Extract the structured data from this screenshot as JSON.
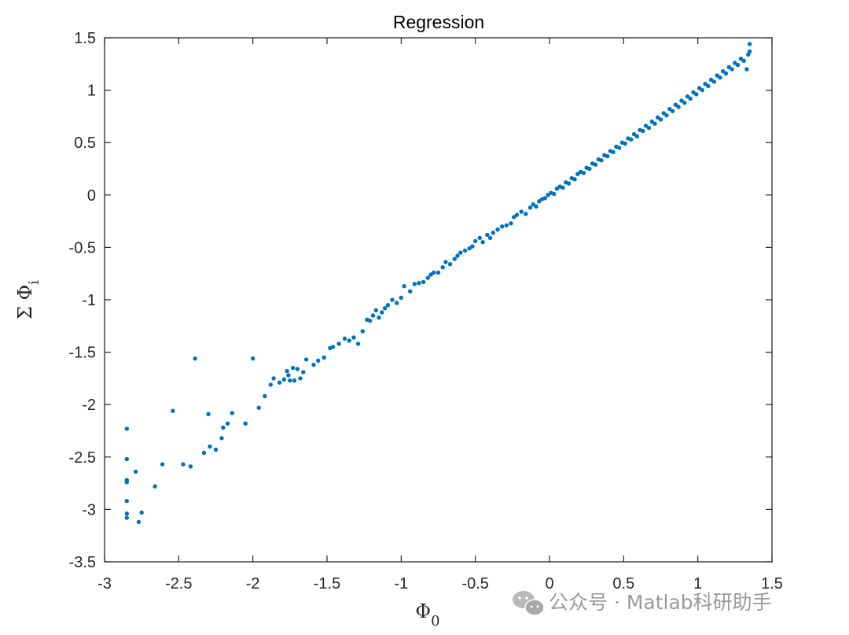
{
  "chart_data": {
    "type": "scatter",
    "title": "Regression",
    "xlabel": {
      "symbol": "Φ",
      "sub": "0"
    },
    "ylabel": {
      "symbol": "Σ Φ",
      "sub": "i"
    },
    "xlim": [
      -3,
      1.5
    ],
    "ylim": [
      -3.5,
      1.5
    ],
    "xticks": [
      "-3",
      "-2.5",
      "-2",
      "-1.5",
      "-1",
      "-0.5",
      "0",
      "0.5",
      "1",
      "1.5"
    ],
    "yticks": [
      "-3.5",
      "-3",
      "-2.5",
      "-2",
      "-1.5",
      "-1",
      "-0.5",
      "0",
      "0.5",
      "1",
      "1.5"
    ],
    "grid": false,
    "marker_color": "#0072BD",
    "series": [
      {
        "points": [
          [
            -2.85,
            -2.23
          ],
          [
            -2.85,
            -2.52
          ],
          [
            -2.85,
            -2.72
          ],
          [
            -2.85,
            -2.74
          ],
          [
            -2.85,
            -2.92
          ],
          [
            -2.85,
            -3.04
          ],
          [
            -2.85,
            -3.08
          ],
          [
            -2.79,
            -2.64
          ],
          [
            -2.77,
            -3.12
          ],
          [
            -2.75,
            -3.03
          ],
          [
            -2.66,
            -2.78
          ],
          [
            -2.61,
            -2.57
          ],
          [
            -2.54,
            -2.06
          ],
          [
            -2.47,
            -2.57
          ],
          [
            -2.42,
            -2.59
          ],
          [
            -2.39,
            -1.56
          ],
          [
            -2.33,
            -2.46
          ],
          [
            -2.3,
            -2.09
          ],
          [
            -2.29,
            -2.4
          ],
          [
            -2.25,
            -2.43
          ],
          [
            -2.21,
            -2.32
          ],
          [
            -2.2,
            -2.22
          ],
          [
            -2.17,
            -2.18
          ],
          [
            -2.14,
            -2.08
          ],
          [
            -2.05,
            -2.18
          ],
          [
            -2.0,
            -1.56
          ],
          [
            -1.96,
            -2.03
          ],
          [
            -1.92,
            -1.92
          ],
          [
            -1.88,
            -1.81
          ],
          [
            -1.86,
            -1.75
          ],
          [
            -1.82,
            -1.79
          ],
          [
            -1.79,
            -1.76
          ],
          [
            -1.77,
            -1.68
          ],
          [
            -1.76,
            -1.72
          ],
          [
            -1.75,
            -1.77
          ],
          [
            -1.73,
            -1.65
          ],
          [
            -1.72,
            -1.77
          ],
          [
            -1.7,
            -1.66
          ],
          [
            -1.68,
            -1.75
          ],
          [
            -1.66,
            -1.69
          ],
          [
            -1.64,
            -1.57
          ],
          [
            -1.59,
            -1.62
          ],
          [
            -1.56,
            -1.58
          ],
          [
            -1.52,
            -1.55
          ],
          [
            -1.48,
            -1.46
          ],
          [
            -1.46,
            -1.45
          ],
          [
            -1.42,
            -1.42
          ],
          [
            -1.38,
            -1.37
          ],
          [
            -1.35,
            -1.39
          ],
          [
            -1.32,
            -1.36
          ],
          [
            -1.29,
            -1.42
          ],
          [
            -1.26,
            -1.3
          ],
          [
            -1.23,
            -1.19
          ],
          [
            -1.21,
            -1.2
          ],
          [
            -1.19,
            -1.15
          ],
          [
            -1.17,
            -1.1
          ],
          [
            -1.15,
            -1.17
          ],
          [
            -1.13,
            -1.12
          ],
          [
            -1.11,
            -1.08
          ],
          [
            -1.09,
            -1.05
          ],
          [
            -1.06,
            -1.0
          ],
          [
            -1.03,
            -1.03
          ],
          [
            -1.0,
            -0.98
          ],
          [
            -0.98,
            -0.87
          ],
          [
            -0.94,
            -0.92
          ],
          [
            -0.91,
            -0.85
          ],
          [
            -0.88,
            -0.84
          ],
          [
            -0.85,
            -0.83
          ],
          [
            -0.82,
            -0.79
          ],
          [
            -0.8,
            -0.76
          ],
          [
            -0.78,
            -0.74
          ],
          [
            -0.75,
            -0.74
          ],
          [
            -0.72,
            -0.69
          ],
          [
            -0.7,
            -0.64
          ],
          [
            -0.67,
            -0.66
          ],
          [
            -0.64,
            -0.61
          ],
          [
            -0.62,
            -0.58
          ],
          [
            -0.6,
            -0.55
          ],
          [
            -0.57,
            -0.53
          ],
          [
            -0.54,
            -0.51
          ],
          [
            -0.52,
            -0.49
          ],
          [
            -0.5,
            -0.44
          ],
          [
            -0.47,
            -0.41
          ],
          [
            -0.45,
            -0.45
          ],
          [
            -0.42,
            -0.38
          ],
          [
            -0.4,
            -0.41
          ],
          [
            -0.38,
            -0.36
          ],
          [
            -0.35,
            -0.33
          ],
          [
            -0.32,
            -0.3
          ],
          [
            -0.29,
            -0.29
          ],
          [
            -0.26,
            -0.27
          ],
          [
            -0.24,
            -0.21
          ],
          [
            -0.22,
            -0.19
          ],
          [
            -0.19,
            -0.16
          ],
          [
            -0.16,
            -0.18
          ],
          [
            -0.13,
            -0.12
          ],
          [
            -0.11,
            -0.09
          ],
          [
            -0.09,
            -0.11
          ],
          [
            -0.07,
            -0.06
          ],
          [
            -0.05,
            -0.04
          ],
          [
            -0.03,
            -0.03
          ],
          [
            -0.01,
            0.0
          ],
          [
            0.01,
            0.02
          ],
          [
            0.03,
            0.01
          ],
          [
            0.05,
            0.06
          ],
          [
            0.07,
            0.08
          ],
          [
            0.09,
            0.07
          ],
          [
            0.11,
            0.12
          ],
          [
            0.13,
            0.11
          ],
          [
            0.15,
            0.16
          ],
          [
            0.17,
            0.15
          ],
          [
            0.19,
            0.2
          ],
          [
            0.21,
            0.22
          ],
          [
            0.23,
            0.21
          ],
          [
            0.25,
            0.26
          ],
          [
            0.27,
            0.25
          ],
          [
            0.29,
            0.3
          ],
          [
            0.31,
            0.29
          ],
          [
            0.33,
            0.34
          ],
          [
            0.35,
            0.33
          ],
          [
            0.37,
            0.38
          ],
          [
            0.39,
            0.37
          ],
          [
            0.41,
            0.42
          ],
          [
            0.43,
            0.41
          ],
          [
            0.45,
            0.46
          ],
          [
            0.47,
            0.45
          ],
          [
            0.49,
            0.5
          ],
          [
            0.51,
            0.49
          ],
          [
            0.53,
            0.54
          ],
          [
            0.55,
            0.53
          ],
          [
            0.57,
            0.58
          ],
          [
            0.59,
            0.56
          ],
          [
            0.61,
            0.62
          ],
          [
            0.63,
            0.61
          ],
          [
            0.65,
            0.66
          ],
          [
            0.67,
            0.64
          ],
          [
            0.69,
            0.7
          ],
          [
            0.71,
            0.68
          ],
          [
            0.73,
            0.74
          ],
          [
            0.75,
            0.72
          ],
          [
            0.77,
            0.78
          ],
          [
            0.79,
            0.76
          ],
          [
            0.81,
            0.82
          ],
          [
            0.83,
            0.8
          ],
          [
            0.85,
            0.86
          ],
          [
            0.87,
            0.84
          ],
          [
            0.89,
            0.9
          ],
          [
            0.91,
            0.88
          ],
          [
            0.93,
            0.94
          ],
          [
            0.95,
            0.92
          ],
          [
            0.97,
            0.98
          ],
          [
            0.99,
            0.96
          ],
          [
            1.01,
            1.02
          ],
          [
            1.03,
            1.0
          ],
          [
            1.05,
            1.06
          ],
          [
            1.07,
            1.04
          ],
          [
            1.09,
            1.1
          ],
          [
            1.11,
            1.08
          ],
          [
            1.13,
            1.14
          ],
          [
            1.15,
            1.12
          ],
          [
            1.17,
            1.18
          ],
          [
            1.19,
            1.16
          ],
          [
            1.21,
            1.22
          ],
          [
            1.23,
            1.2
          ],
          [
            1.25,
            1.26
          ],
          [
            1.27,
            1.24
          ],
          [
            1.29,
            1.3
          ],
          [
            1.31,
            1.28
          ],
          [
            1.33,
            1.2
          ],
          [
            1.34,
            1.34
          ],
          [
            1.35,
            1.37
          ],
          [
            1.35,
            1.44
          ]
        ]
      }
    ]
  },
  "watermark": {
    "text": "公众号 · Matlab科研助手",
    "icon": "wechat-icon"
  }
}
